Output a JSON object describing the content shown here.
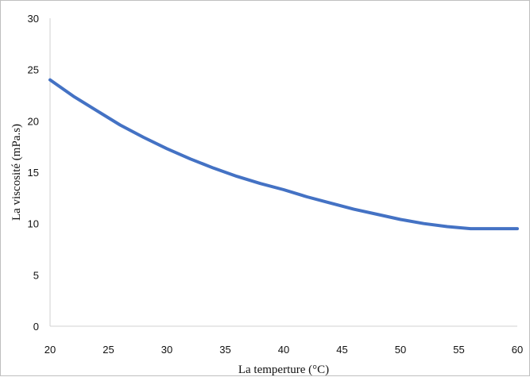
{
  "chart_data": {
    "type": "line",
    "title": "",
    "xlabel": "La temperture (°C)",
    "ylabel": "La viscosité (mPa.s)",
    "xlim": [
      20,
      60
    ],
    "ylim": [
      0,
      30
    ],
    "xticks": [
      20,
      25,
      30,
      35,
      40,
      45,
      50,
      55,
      60
    ],
    "yticks": [
      0,
      5,
      10,
      15,
      20,
      25,
      30
    ],
    "grid": false,
    "legend": "none",
    "series": [
      {
        "color": "#4472C4",
        "x": [
          20,
          22,
          24,
          26,
          28,
          30,
          32,
          34,
          36,
          38,
          40,
          42,
          44,
          46,
          48,
          50,
          52,
          54,
          56,
          58,
          60
        ],
        "y": [
          24.0,
          22.4,
          21.0,
          19.6,
          18.4,
          17.3,
          16.3,
          15.4,
          14.6,
          13.9,
          13.3,
          12.6,
          12.0,
          11.4,
          10.9,
          10.4,
          10.0,
          9.7,
          9.5,
          9.5,
          9.5
        ]
      }
    ]
  }
}
